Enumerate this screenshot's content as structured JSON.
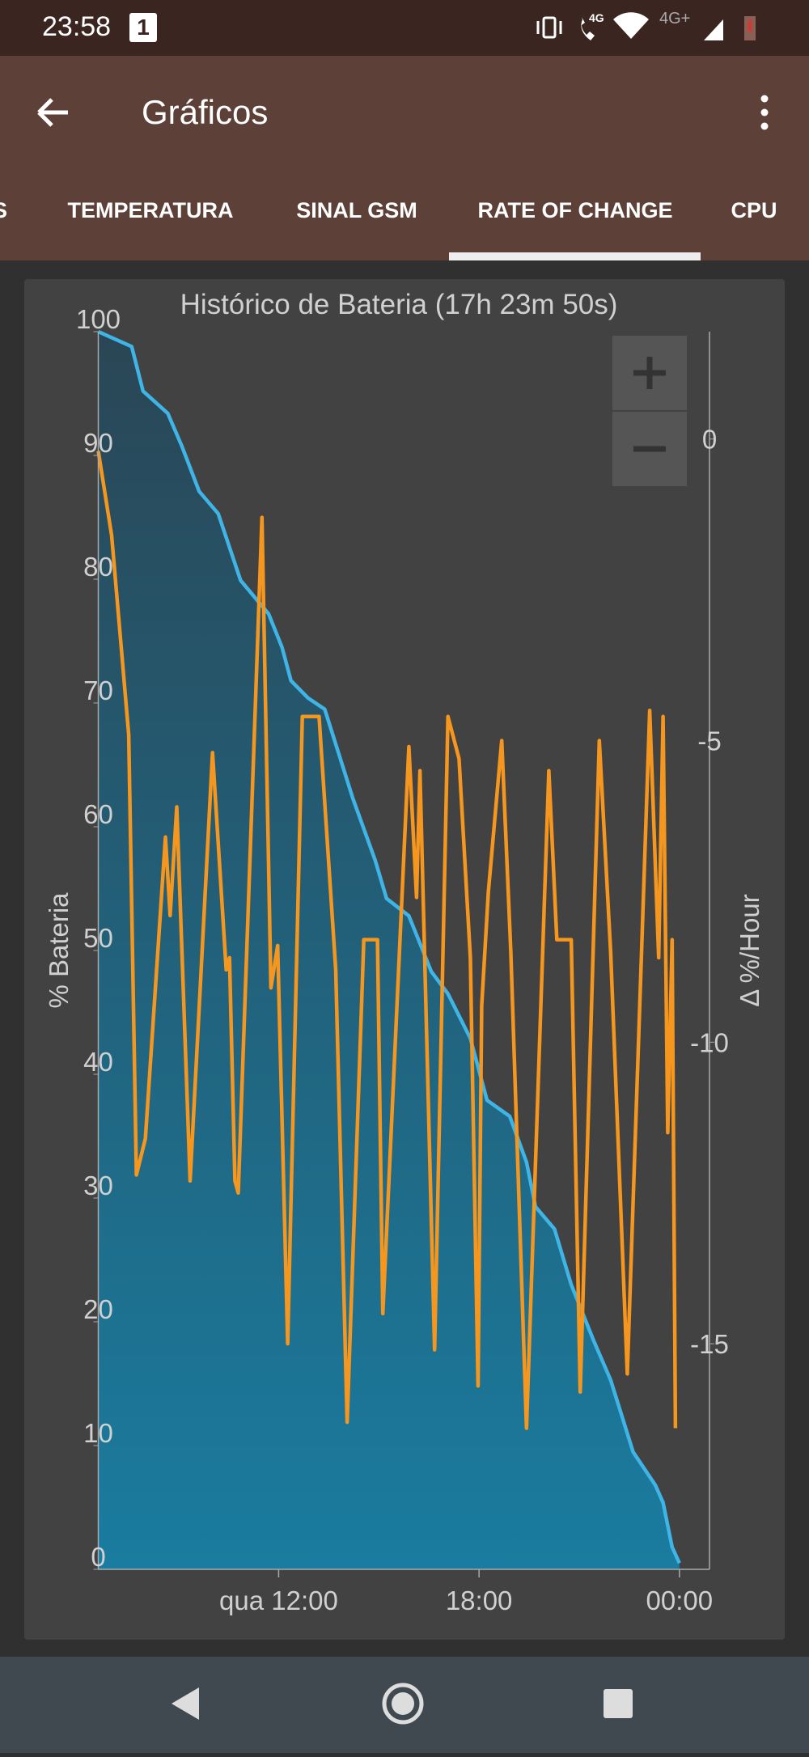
{
  "status_bar": {
    "time": "23:58",
    "notification": "1",
    "network_1": "4G",
    "network_2": "4G+"
  },
  "app_bar": {
    "title": "Gráficos"
  },
  "tabs": [
    "S",
    "TEMPERATURA",
    "SINAL GSM",
    "RATE OF CHANGE",
    "CPU"
  ],
  "chart_data": {
    "type": "line",
    "title": "Histórico de Bateria (17h 23m 50s)",
    "y_label": "% Bateria",
    "y2_label": "Δ %/Hour",
    "xlim": [
      6.6,
      24.9
    ],
    "xticks": [
      {
        "value": 12,
        "label": "qua 12:00"
      },
      {
        "value": 18,
        "label": "18:00"
      },
      {
        "value": 24,
        "label": "00:00"
      }
    ],
    "ylim": [
      0,
      100
    ],
    "yticks": [
      0,
      10,
      20,
      30,
      40,
      50,
      60,
      70,
      80,
      90,
      100
    ],
    "y2lim": [
      -18.74,
      1.78
    ],
    "y2ticks": [
      -15,
      -10,
      -5,
      0
    ],
    "series": [
      {
        "name": "% Bateria",
        "color": "#3fb4e6",
        "fill": true,
        "x": [
          6.6,
          7.6,
          7.94,
          8.68,
          9.11,
          9.62,
          10.19,
          10.86,
          11.7,
          12.1,
          12.37,
          12.88,
          13.38,
          14.22,
          14.89,
          15.23,
          15.9,
          16.57,
          17.07,
          17.74,
          18.24,
          18.92,
          19.42,
          19.69,
          20.26,
          20.76,
          21.43,
          21.94,
          22.61,
          23.28,
          23.51,
          23.78,
          24.0
        ],
        "values": [
          100,
          98.8,
          95.2,
          93.4,
          90.7,
          87.1,
          85.3,
          79.9,
          77.2,
          74.5,
          71.8,
          70.4,
          69.5,
          62.3,
          57.3,
          54.2,
          52.8,
          48.3,
          46.5,
          42.9,
          37.9,
          36.6,
          32.9,
          29.3,
          27.5,
          23.0,
          18.5,
          15.3,
          9.5,
          6.8,
          5.4,
          1.8,
          0.5
        ]
      },
      {
        "name": "Δ %/Hour",
        "color": "#f5961e",
        "axis": "y2",
        "x": [
          6.6,
          7.0,
          7.51,
          7.74,
          8.01,
          8.61,
          8.75,
          8.95,
          9.35,
          10.02,
          10.43,
          10.53,
          10.69,
          10.79,
          11.5,
          11.77,
          11.97,
          12.27,
          12.71,
          13.21,
          13.71,
          14.05,
          14.55,
          14.96,
          15.12,
          15.9,
          16.13,
          16.23,
          16.67,
          17.07,
          17.4,
          17.74,
          17.97,
          18.08,
          18.28,
          18.68,
          18.95,
          19.42,
          20.09,
          20.33,
          20.76,
          21.03,
          21.6,
          21.94,
          22.44,
          23.11,
          23.38,
          23.51,
          23.65,
          23.78,
          23.88
        ],
        "values": [
          -0.2,
          -1.6,
          -4.9,
          -12.2,
          -11.6,
          -6.6,
          -7.9,
          -6.1,
          -12.3,
          -5.2,
          -8.8,
          -8.6,
          -12.3,
          -12.5,
          -1.3,
          -9.1,
          -8.4,
          -15.0,
          -4.6,
          -4.6,
          -8.8,
          -16.3,
          -8.3,
          -8.3,
          -14.5,
          -5.1,
          -7.6,
          -5.5,
          -15.1,
          -4.6,
          -5.3,
          -8.6,
          -15.7,
          -9.4,
          -7.5,
          -5.0,
          -8.5,
          -16.4,
          -5.5,
          -8.3,
          -8.3,
          -15.8,
          -5.0,
          -8.5,
          -15.5,
          -4.5,
          -8.6,
          -4.6,
          -11.5,
          -8.3,
          -16.4
        ]
      }
    ]
  }
}
